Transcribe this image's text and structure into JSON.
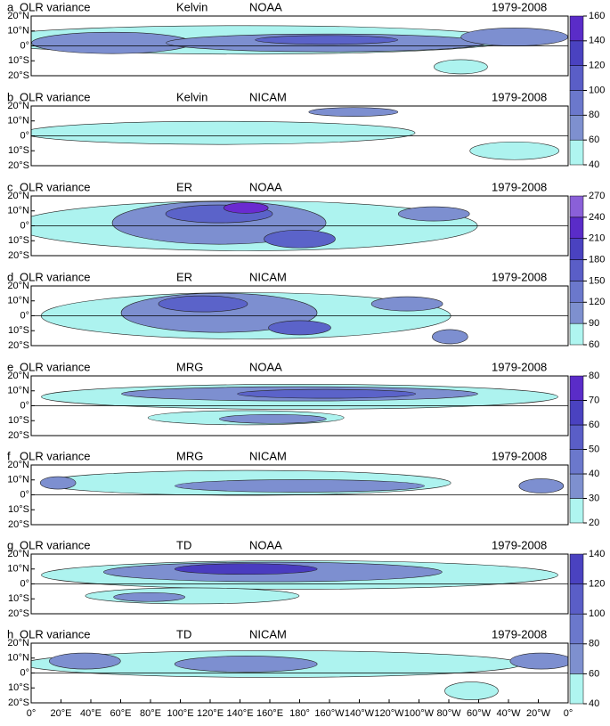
{
  "panels": [
    {
      "letter": "a",
      "label": "OLR variance",
      "wave": "Kelvin",
      "source": "NOAA",
      "period": "1979-2008"
    },
    {
      "letter": "b",
      "label": "OLR variance",
      "wave": "Kelvin",
      "source": "NICAM",
      "period": "1979-2008"
    },
    {
      "letter": "c",
      "label": "OLR variance",
      "wave": "ER",
      "source": "NOAA",
      "period": "1979-2008"
    },
    {
      "letter": "d",
      "label": "OLR variance",
      "wave": "ER",
      "source": "NICAM",
      "period": "1979-2008"
    },
    {
      "letter": "e",
      "label": "OLR variance",
      "wave": "MRG",
      "source": "NOAA",
      "period": "1979-2008"
    },
    {
      "letter": "f",
      "label": "OLR variance",
      "wave": "MRG",
      "source": "NICAM",
      "period": "1979-2008"
    },
    {
      "letter": "g",
      "label": "OLR variance",
      "wave": "TD",
      "source": "NOAA",
      "period": "1979-2008"
    },
    {
      "letter": "h",
      "label": "OLR variance",
      "wave": "TD",
      "source": "NICAM",
      "period": "1979-2008"
    }
  ],
  "lat_ticks": [
    "20°N",
    "10°N",
    "0°",
    "10°S",
    "20°S"
  ],
  "lon_ticks": [
    "0°",
    "20°E",
    "40°E",
    "60°E",
    "80°E",
    "100°E",
    "120°E",
    "140°E",
    "160°E",
    "180°",
    "160°W",
    "140°W",
    "120°W",
    "100°W",
    "80°W",
    "60°W",
    "40°W",
    "20°W",
    "0°"
  ],
  "colorbars": [
    {
      "ticks": [
        160,
        140,
        120,
        100,
        80,
        60,
        40
      ]
    },
    {
      "ticks": [
        270,
        240,
        210,
        180,
        150,
        120,
        90,
        60
      ]
    },
    {
      "ticks": [
        80,
        70,
        60,
        50,
        40,
        30,
        20
      ]
    },
    {
      "ticks": [
        140,
        120,
        100,
        80,
        60,
        40
      ]
    }
  ]
}
